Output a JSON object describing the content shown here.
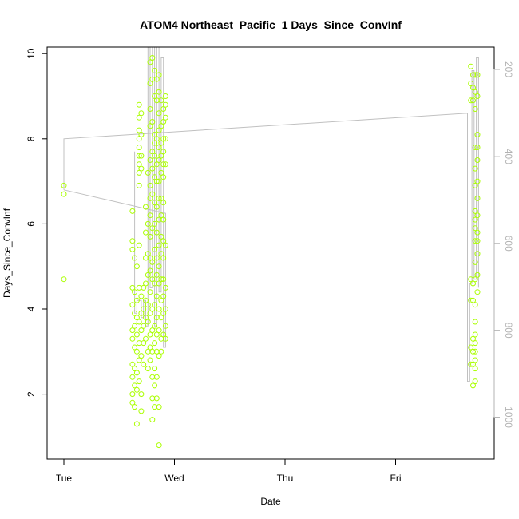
{
  "chart_data": {
    "type": "scatter",
    "title": "ATOM4 Northeast_Pacific_1 Days_Since_ConvInf",
    "xlabel": "Date",
    "ylabel": "Days_Since_ConvInf",
    "x_ticks": [
      "Tue",
      "Wed",
      "Thu",
      "Fri"
    ],
    "xlim": [
      0,
      4
    ],
    "ylim": [
      0.5,
      10.2
    ],
    "y_ticks": [
      2,
      4,
      6,
      8,
      10
    ],
    "y2_ticks": [
      200,
      400,
      600,
      800,
      1000
    ],
    "y2lim": [
      142,
      1040
    ],
    "grid": false,
    "colors": {
      "points": "#aaff00",
      "line": "#c0c0c0",
      "right_axis": "#b3b3b3",
      "axes": "#000000"
    },
    "series": [
      {
        "type": "points",
        "points": [
          [
            0.0,
            6.9
          ],
          [
            0.0,
            6.7
          ],
          [
            0.0,
            4.7
          ],
          [
            0.62,
            6.3
          ],
          [
            0.62,
            5.6
          ],
          [
            0.62,
            5.4
          ],
          [
            0.62,
            4.5
          ],
          [
            0.62,
            4.1
          ],
          [
            0.62,
            3.5
          ],
          [
            0.62,
            3.3
          ],
          [
            0.62,
            2.7
          ],
          [
            0.62,
            2.4
          ],
          [
            0.62,
            2.0
          ],
          [
            0.62,
            1.8
          ],
          [
            0.64,
            5.2
          ],
          [
            0.64,
            4.4
          ],
          [
            0.64,
            3.9
          ],
          [
            0.64,
            3.6
          ],
          [
            0.64,
            3.1
          ],
          [
            0.64,
            2.6
          ],
          [
            0.64,
            2.2
          ],
          [
            0.64,
            1.7
          ],
          [
            0.66,
            5.0
          ],
          [
            0.66,
            4.2
          ],
          [
            0.66,
            3.8
          ],
          [
            0.66,
            3.4
          ],
          [
            0.66,
            3.0
          ],
          [
            0.66,
            2.5
          ],
          [
            0.66,
            2.1
          ],
          [
            0.66,
            1.3
          ],
          [
            0.68,
            8.8
          ],
          [
            0.68,
            8.5
          ],
          [
            0.68,
            8.2
          ],
          [
            0.68,
            8.0
          ],
          [
            0.68,
            7.8
          ],
          [
            0.68,
            7.6
          ],
          [
            0.68,
            7.4
          ],
          [
            0.68,
            7.2
          ],
          [
            0.68,
            6.9
          ],
          [
            0.68,
            5.5
          ],
          [
            0.68,
            4.5
          ],
          [
            0.68,
            3.7
          ],
          [
            0.68,
            3.2
          ],
          [
            0.68,
            2.8
          ],
          [
            0.68,
            2.3
          ],
          [
            0.7,
            8.6
          ],
          [
            0.7,
            8.1
          ],
          [
            0.7,
            7.6
          ],
          [
            0.7,
            7.3
          ],
          [
            0.7,
            4.3
          ],
          [
            0.7,
            3.9
          ],
          [
            0.7,
            3.5
          ],
          [
            0.7,
            2.9
          ],
          [
            0.7,
            2.0
          ],
          [
            0.7,
            1.6
          ],
          [
            0.72,
            4.5
          ],
          [
            0.72,
            4.0
          ],
          [
            0.72,
            3.6
          ],
          [
            0.72,
            3.2
          ],
          [
            0.72,
            2.7
          ],
          [
            0.74,
            6.4
          ],
          [
            0.74,
            5.8
          ],
          [
            0.74,
            5.2
          ],
          [
            0.74,
            4.6
          ],
          [
            0.74,
            4.2
          ],
          [
            0.74,
            3.8
          ],
          [
            0.74,
            3.3
          ],
          [
            0.76,
            7.2
          ],
          [
            0.76,
            6.0
          ],
          [
            0.76,
            5.3
          ],
          [
            0.76,
            4.8
          ],
          [
            0.76,
            4.1
          ],
          [
            0.76,
            3.7
          ],
          [
            0.76,
            3.0
          ],
          [
            0.76,
            2.6
          ],
          [
            0.78,
            9.8
          ],
          [
            0.78,
            9.3
          ],
          [
            0.78,
            8.7
          ],
          [
            0.78,
            8.3
          ],
          [
            0.78,
            7.5
          ],
          [
            0.78,
            6.9
          ],
          [
            0.78,
            6.6
          ],
          [
            0.78,
            6.2
          ],
          [
            0.78,
            5.7
          ],
          [
            0.78,
            5.2
          ],
          [
            0.78,
            4.9
          ],
          [
            0.78,
            4.4
          ],
          [
            0.78,
            3.9
          ],
          [
            0.78,
            3.4
          ],
          [
            0.78,
            3.1
          ],
          [
            0.78,
            2.8
          ],
          [
            0.8,
            9.9
          ],
          [
            0.8,
            9.4
          ],
          [
            0.8,
            8.4
          ],
          [
            0.8,
            7.7
          ],
          [
            0.8,
            7.3
          ],
          [
            0.8,
            6.7
          ],
          [
            0.8,
            5.9
          ],
          [
            0.8,
            5.1
          ],
          [
            0.8,
            4.7
          ],
          [
            0.8,
            4.0
          ],
          [
            0.8,
            3.5
          ],
          [
            0.8,
            3.0
          ],
          [
            0.8,
            2.4
          ],
          [
            0.8,
            1.9
          ],
          [
            0.8,
            1.4
          ],
          [
            0.82,
            9.6
          ],
          [
            0.82,
            9.0
          ],
          [
            0.82,
            8.1
          ],
          [
            0.82,
            7.9
          ],
          [
            0.82,
            7.6
          ],
          [
            0.82,
            7.1
          ],
          [
            0.82,
            6.5
          ],
          [
            0.82,
            6.0
          ],
          [
            0.82,
            5.4
          ],
          [
            0.82,
            4.6
          ],
          [
            0.82,
            4.1
          ],
          [
            0.82,
            3.6
          ],
          [
            0.82,
            3.2
          ],
          [
            0.82,
            2.6
          ],
          [
            0.82,
            2.2
          ],
          [
            0.82,
            1.7
          ],
          [
            0.84,
            9.4
          ],
          [
            0.84,
            8.9
          ],
          [
            0.84,
            8.0
          ],
          [
            0.84,
            7.4
          ],
          [
            0.84,
            7.0
          ],
          [
            0.84,
            6.4
          ],
          [
            0.84,
            5.8
          ],
          [
            0.84,
            5.2
          ],
          [
            0.84,
            4.8
          ],
          [
            0.84,
            4.3
          ],
          [
            0.84,
            3.8
          ],
          [
            0.84,
            3.4
          ],
          [
            0.84,
            3.0
          ],
          [
            0.84,
            2.4
          ],
          [
            0.84,
            1.9
          ],
          [
            0.86,
            9.5
          ],
          [
            0.86,
            9.1
          ],
          [
            0.86,
            8.6
          ],
          [
            0.86,
            8.2
          ],
          [
            0.86,
            7.8
          ],
          [
            0.86,
            7.5
          ],
          [
            0.86,
            7.0
          ],
          [
            0.86,
            6.6
          ],
          [
            0.86,
            6.1
          ],
          [
            0.86,
            5.5
          ],
          [
            0.86,
            5.0
          ],
          [
            0.86,
            4.6
          ],
          [
            0.86,
            4.0
          ],
          [
            0.86,
            3.5
          ],
          [
            0.86,
            2.9
          ],
          [
            0.86,
            1.7
          ],
          [
            0.86,
            0.8
          ],
          [
            0.88,
            8.9
          ],
          [
            0.88,
            8.3
          ],
          [
            0.88,
            7.9
          ],
          [
            0.88,
            7.6
          ],
          [
            0.88,
            7.2
          ],
          [
            0.88,
            6.6
          ],
          [
            0.88,
            6.2
          ],
          [
            0.88,
            5.7
          ],
          [
            0.88,
            5.3
          ],
          [
            0.88,
            4.7
          ],
          [
            0.88,
            4.2
          ],
          [
            0.88,
            3.8
          ],
          [
            0.88,
            3.3
          ],
          [
            0.88,
            3.0
          ],
          [
            0.9,
            8.7
          ],
          [
            0.9,
            8.4
          ],
          [
            0.9,
            8.0
          ],
          [
            0.9,
            7.7
          ],
          [
            0.9,
            7.4
          ],
          [
            0.9,
            7.1
          ],
          [
            0.9,
            6.5
          ],
          [
            0.9,
            6.1
          ],
          [
            0.9,
            5.6
          ],
          [
            0.9,
            5.2
          ],
          [
            0.9,
            4.7
          ],
          [
            0.9,
            4.3
          ],
          [
            0.9,
            3.9
          ],
          [
            0.9,
            3.4
          ],
          [
            0.92,
            9.0
          ],
          [
            0.92,
            8.8
          ],
          [
            0.92,
            8.5
          ],
          [
            0.92,
            8.0
          ],
          [
            0.92,
            7.4
          ],
          [
            0.92,
            5.5
          ],
          [
            0.92,
            4.5
          ],
          [
            0.92,
            4.0
          ],
          [
            0.92,
            3.6
          ],
          [
            0.92,
            3.3
          ],
          [
            3.68,
            9.7
          ],
          [
            3.68,
            9.3
          ],
          [
            3.68,
            8.9
          ],
          [
            3.68,
            4.7
          ],
          [
            3.68,
            4.2
          ],
          [
            3.68,
            3.1
          ],
          [
            3.68,
            2.7
          ],
          [
            3.7,
            9.5
          ],
          [
            3.7,
            9.2
          ],
          [
            3.7,
            8.9
          ],
          [
            3.7,
            4.6
          ],
          [
            3.7,
            4.2
          ],
          [
            3.7,
            3.3
          ],
          [
            3.7,
            3.0
          ],
          [
            3.7,
            2.7
          ],
          [
            3.7,
            2.2
          ],
          [
            3.72,
            9.5
          ],
          [
            3.72,
            9.1
          ],
          [
            3.72,
            8.7
          ],
          [
            3.72,
            7.8
          ],
          [
            3.72,
            7.3
          ],
          [
            3.72,
            6.9
          ],
          [
            3.72,
            6.3
          ],
          [
            3.72,
            6.1
          ],
          [
            3.72,
            5.9
          ],
          [
            3.72,
            5.6
          ],
          [
            3.72,
            5.1
          ],
          [
            3.72,
            4.7
          ],
          [
            3.72,
            4.1
          ],
          [
            3.72,
            3.7
          ],
          [
            3.72,
            3.4
          ],
          [
            3.72,
            3.2
          ],
          [
            3.72,
            3.0
          ],
          [
            3.72,
            2.8
          ],
          [
            3.72,
            2.6
          ],
          [
            3.72,
            2.3
          ],
          [
            3.74,
            9.5
          ],
          [
            3.74,
            9.0
          ],
          [
            3.74,
            8.1
          ],
          [
            3.74,
            7.8
          ],
          [
            3.74,
            7.5
          ],
          [
            3.74,
            7.0
          ],
          [
            3.74,
            6.6
          ],
          [
            3.74,
            6.2
          ],
          [
            3.74,
            5.8
          ],
          [
            3.74,
            5.6
          ],
          [
            3.74,
            5.3
          ],
          [
            3.74,
            4.8
          ],
          [
            3.74,
            4.4
          ]
        ]
      },
      {
        "type": "line",
        "path": [
          [
            0.0,
            6.8
          ],
          [
            0.0,
            8.0
          ],
          [
            3.65,
            8.6
          ],
          [
            3.65,
            2.3
          ],
          [
            3.67,
            2.3
          ],
          [
            3.67,
            4.6
          ],
          [
            3.69,
            4.6
          ],
          [
            3.69,
            9.6
          ],
          [
            3.71,
            9.6
          ],
          [
            3.71,
            4.7
          ],
          [
            3.73,
            4.7
          ],
          [
            3.73,
            9.9
          ],
          [
            3.75,
            9.9
          ],
          [
            3.75,
            4.5
          ]
        ]
      },
      {
        "type": "line",
        "path": [
          [
            0.0,
            6.8
          ],
          [
            0.92,
            6.25
          ],
          [
            0.92,
            3.1
          ],
          [
            0.9,
            3.1
          ],
          [
            0.9,
            9.9
          ],
          [
            0.88,
            9.9
          ],
          [
            0.88,
            4.4
          ],
          [
            0.86,
            4.4
          ],
          [
            0.86,
            10.2
          ],
          [
            0.84,
            10.2
          ],
          [
            0.84,
            3.6
          ],
          [
            0.82,
            3.6
          ],
          [
            0.82,
            10.2
          ],
          [
            0.8,
            10.2
          ],
          [
            0.8,
            4.5
          ],
          [
            0.78,
            4.5
          ],
          [
            0.78,
            10.2
          ],
          [
            0.76,
            10.2
          ],
          [
            0.76,
            3.6
          ],
          [
            0.74,
            3.6
          ],
          [
            0.74,
            4.2
          ],
          [
            0.72,
            4.2
          ],
          [
            0.72,
            3.8
          ],
          [
            0.7,
            3.8
          ],
          [
            0.7,
            4.2
          ],
          [
            0.66,
            4.2
          ],
          [
            0.66,
            3.9
          ],
          [
            0.64,
            3.9
          ],
          [
            0.64,
            7.7
          ]
        ]
      }
    ]
  }
}
